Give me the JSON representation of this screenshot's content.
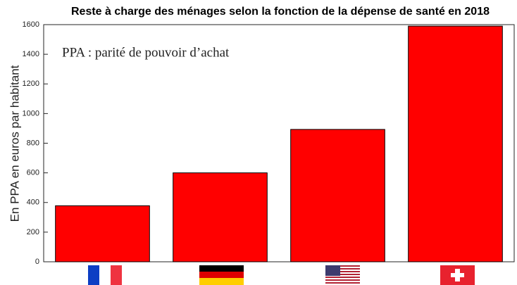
{
  "chart_data": {
    "type": "bar",
    "title": "Reste à charge des ménages selon la fonction de la dépense de santé en 2018",
    "ylabel": "En PPA en euros par habitant",
    "annotation": "PPA : parité de pouvoir d’achat",
    "categories": [
      null,
      null,
      null,
      null
    ],
    "values": [
      378,
      600,
      893,
      1590
    ],
    "color": "#ff0000",
    "ylim": [
      0,
      1600
    ],
    "yticks": [
      0,
      200,
      400,
      600,
      800,
      1000,
      1200,
      1400,
      1600
    ],
    "grid": false
  }
}
